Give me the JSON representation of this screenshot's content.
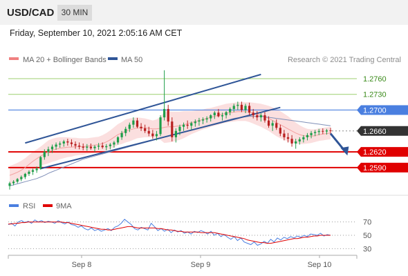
{
  "header": {
    "symbol": "USD/CAD",
    "timeframe": "30 MIN"
  },
  "timestamp": "Friday, September 10, 2021 2:05:16 AM CET",
  "legend": {
    "ma20": "MA 20 + Bollinger Bands",
    "ma50": "MA 50",
    "ma20_color": "#f08080",
    "ma50_color": "#2f5597"
  },
  "copyright": "Research © 2021 Trading Central",
  "chart_data": [
    {
      "type": "line",
      "panel": "price",
      "ylim": [
        1.2545,
        1.2785
      ],
      "x_ticks": [
        "Sep 8",
        "Sep 9",
        "Sep 10"
      ],
      "candles_ohlc": [
        [
          1.2555,
          1.2563,
          1.2548,
          1.256
        ],
        [
          1.256,
          1.2566,
          1.2556,
          1.2563
        ],
        [
          1.2563,
          1.257,
          1.256,
          1.2568
        ],
        [
          1.2568,
          1.2575,
          1.2564,
          1.2572
        ],
        [
          1.2572,
          1.258,
          1.2568,
          1.2578
        ],
        [
          1.2578,
          1.2585,
          1.2574,
          1.2582
        ],
        [
          1.2582,
          1.2588,
          1.2576,
          1.2585
        ],
        [
          1.2585,
          1.2592,
          1.258,
          1.2588
        ],
        [
          1.2588,
          1.2612,
          1.2586,
          1.261
        ],
        [
          1.261,
          1.2625,
          1.2605,
          1.262
        ],
        [
          1.262,
          1.263,
          1.2612,
          1.2625
        ],
        [
          1.2625,
          1.2634,
          1.2618,
          1.263
        ],
        [
          1.263,
          1.2638,
          1.2624,
          1.2634
        ],
        [
          1.2634,
          1.264,
          1.2628,
          1.2636
        ],
        [
          1.2636,
          1.2643,
          1.263,
          1.264
        ],
        [
          1.264,
          1.2645,
          1.2632,
          1.2638
        ],
        [
          1.2638,
          1.2644,
          1.263,
          1.2635
        ],
        [
          1.2635,
          1.264,
          1.2626,
          1.2632
        ],
        [
          1.2632,
          1.2638,
          1.2625,
          1.263
        ],
        [
          1.263,
          1.2636,
          1.2623,
          1.2628
        ],
        [
          1.2628,
          1.2635,
          1.2622,
          1.263
        ],
        [
          1.263,
          1.2636,
          1.2624,
          1.2627
        ],
        [
          1.2627,
          1.2633,
          1.262,
          1.263
        ],
        [
          1.263,
          1.2637,
          1.2624,
          1.2632
        ],
        [
          1.2632,
          1.2638,
          1.2626,
          1.2629
        ],
        [
          1.2629,
          1.2635,
          1.2623,
          1.2631
        ],
        [
          1.2631,
          1.2637,
          1.2625,
          1.2634
        ],
        [
          1.2634,
          1.2641,
          1.2628,
          1.2638
        ],
        [
          1.2638,
          1.265,
          1.2634,
          1.2648
        ],
        [
          1.2648,
          1.266,
          1.2643,
          1.2656
        ],
        [
          1.2656,
          1.2668,
          1.265,
          1.2664
        ],
        [
          1.2664,
          1.2676,
          1.2658,
          1.2672
        ],
        [
          1.2672,
          1.2686,
          1.2666,
          1.268
        ],
        [
          1.268,
          1.2685,
          1.2665,
          1.2668
        ],
        [
          1.2668,
          1.2675,
          1.266,
          1.2665
        ],
        [
          1.2665,
          1.2672,
          1.2656,
          1.266
        ],
        [
          1.266,
          1.2668,
          1.265,
          1.2655
        ],
        [
          1.2655,
          1.2662,
          1.2645,
          1.265
        ],
        [
          1.265,
          1.266,
          1.2642,
          1.2654
        ],
        [
          1.2654,
          1.269,
          1.265,
          1.2686
        ],
        [
          1.2686,
          1.2776,
          1.268,
          1.2702
        ],
        [
          1.2702,
          1.271,
          1.267,
          1.2678
        ],
        [
          1.2678,
          1.2686,
          1.264,
          1.2648
        ],
        [
          1.2648,
          1.2665,
          1.2638,
          1.266
        ],
        [
          1.266,
          1.2672,
          1.2652,
          1.2668
        ],
        [
          1.2668,
          1.2676,
          1.266,
          1.2672
        ],
        [
          1.2672,
          1.268,
          1.2664,
          1.267
        ],
        [
          1.267,
          1.2678,
          1.2662,
          1.2675
        ],
        [
          1.2675,
          1.2682,
          1.2668,
          1.2678
        ],
        [
          1.2678,
          1.2685,
          1.267,
          1.268
        ],
        [
          1.268,
          1.2686,
          1.2673,
          1.2682
        ],
        [
          1.2682,
          1.2688,
          1.2676,
          1.2684
        ],
        [
          1.2684,
          1.2692,
          1.2678,
          1.269
        ],
        [
          1.269,
          1.2698,
          1.2683,
          1.2695
        ],
        [
          1.2695,
          1.2702,
          1.2686,
          1.2688
        ],
        [
          1.2688,
          1.2695,
          1.268,
          1.269
        ],
        [
          1.269,
          1.2698,
          1.2684,
          1.2696
        ],
        [
          1.2696,
          1.2705,
          1.269,
          1.2702
        ],
        [
          1.2702,
          1.2712,
          1.2696,
          1.2708
        ],
        [
          1.2708,
          1.2716,
          1.27,
          1.271
        ],
        [
          1.271,
          1.2716,
          1.2696,
          1.27
        ],
        [
          1.27,
          1.2712,
          1.2694,
          1.2708
        ],
        [
          1.2708,
          1.2714,
          1.269,
          1.2695
        ],
        [
          1.2695,
          1.2702,
          1.2684,
          1.269
        ],
        [
          1.269,
          1.2698,
          1.268,
          1.2686
        ],
        [
          1.2686,
          1.2694,
          1.2678,
          1.269
        ],
        [
          1.269,
          1.2696,
          1.2676,
          1.268
        ],
        [
          1.268,
          1.2688,
          1.2666,
          1.267
        ],
        [
          1.267,
          1.268,
          1.266,
          1.2675
        ],
        [
          1.2675,
          1.2682,
          1.2662,
          1.2666
        ],
        [
          1.2666,
          1.2672,
          1.265,
          1.2655
        ],
        [
          1.2655,
          1.2662,
          1.2642,
          1.2648
        ],
        [
          1.2648,
          1.2656,
          1.2638,
          1.2645
        ],
        [
          1.2645,
          1.2652,
          1.263,
          1.2636
        ],
        [
          1.2636,
          1.2645,
          1.2626,
          1.264
        ],
        [
          1.264,
          1.2648,
          1.2634,
          1.2644
        ],
        [
          1.2644,
          1.2652,
          1.2638,
          1.2648
        ],
        [
          1.2648,
          1.2656,
          1.2642,
          1.2652
        ],
        [
          1.2652,
          1.266,
          1.2646,
          1.2656
        ],
        [
          1.2656,
          1.2662,
          1.265,
          1.2658
        ],
        [
          1.2658,
          1.2664,
          1.2652,
          1.266
        ],
        [
          1.266,
          1.2665,
          1.2654,
          1.2659
        ],
        [
          1.2659,
          1.2664,
          1.2653,
          1.2661
        ],
        [
          1.2661,
          1.2666,
          1.2655,
          1.266
        ]
      ],
      "ma20": [
        1.2575,
        1.2578,
        1.2581,
        1.2585,
        1.259,
        1.2596,
        1.2602,
        1.2607,
        1.2612,
        1.2616,
        1.262,
        1.2623,
        1.2625,
        1.2627,
        1.2628,
        1.2629,
        1.2629,
        1.263,
        1.263,
        1.263,
        1.2631,
        1.2632,
        1.2633,
        1.2634,
        1.2636,
        1.2639,
        1.2643,
        1.2648,
        1.2653,
        1.2656,
        1.266,
        1.2662,
        1.2664,
        1.2666,
        1.2666,
        1.2666,
        1.2665,
        1.2664,
        1.2664,
        1.2665,
        1.2667,
        1.2668,
        1.2668,
        1.2669,
        1.267,
        1.2672,
        1.2674,
        1.2676,
        1.2678,
        1.268,
        1.2682,
        1.2684,
        1.2686,
        1.2688,
        1.269,
        1.2692,
        1.2694,
        1.2695,
        1.2696,
        1.2697,
        1.2697,
        1.2697,
        1.2696,
        1.2694,
        1.2692,
        1.269,
        1.2687,
        1.2684,
        1.268,
        1.2676,
        1.2672,
        1.2668,
        1.2664,
        1.266,
        1.2656,
        1.2653,
        1.2651,
        1.265,
        1.265,
        1.2651,
        1.2653,
        1.2654,
        1.2655,
        1.2656
      ],
      "ma50": [
        1.2555,
        1.2557,
        1.2559,
        1.2561,
        1.2563,
        1.2565,
        1.2567,
        1.2569,
        1.2572,
        1.2575,
        1.2579,
        1.2582,
        1.2585,
        1.2588,
        1.2591,
        1.2594,
        1.2597,
        1.26,
        1.2603,
        1.2606,
        1.2608,
        1.261,
        1.2612,
        1.2614,
        1.2616,
        1.2618,
        1.262,
        1.2622,
        1.2624,
        1.2626,
        1.2628,
        1.263,
        1.2632,
        1.2634,
        1.2636,
        1.2638,
        1.264,
        1.2642,
        1.2644,
        1.2646,
        1.2648,
        1.265,
        1.2652,
        1.2654,
        1.2656,
        1.2658,
        1.266,
        1.2662,
        1.2664,
        1.2666,
        1.2668,
        1.267,
        1.2672,
        1.2674,
        1.2676,
        1.2678,
        1.268,
        1.2682,
        1.2684,
        1.2685,
        1.2686,
        1.2687,
        1.2688,
        1.2688,
        1.2688,
        1.2688,
        1.2687,
        1.2686,
        1.2685,
        1.2684,
        1.2683,
        1.2682,
        1.2681,
        1.268,
        1.2679,
        1.2678,
        1.2677,
        1.2676,
        1.2675,
        1.2674,
        1.2673,
        1.2672,
        1.2671,
        1.267
      ],
      "bollinger_width": [
        0.0018,
        0.0018,
        0.0018,
        0.0018,
        0.0018,
        0.0018,
        0.0018,
        0.0018,
        0.0018,
        0.002,
        0.0022,
        0.0022,
        0.0022,
        0.0021,
        0.002,
        0.0019,
        0.0018,
        0.0017,
        0.0016,
        0.0016,
        0.0015,
        0.0015,
        0.0015,
        0.0015,
        0.0016,
        0.0017,
        0.0018,
        0.0019,
        0.002,
        0.0021,
        0.0022,
        0.0022,
        0.0021,
        0.002,
        0.0019,
        0.0018,
        0.0017,
        0.0016,
        0.0018,
        0.0022,
        0.003,
        0.003,
        0.0029,
        0.0028,
        0.0027,
        0.0026,
        0.0024,
        0.0022,
        0.0021,
        0.002,
        0.0019,
        0.0019,
        0.0018,
        0.0018,
        0.0018,
        0.0018,
        0.0018,
        0.0018,
        0.0018,
        0.0018,
        0.0018,
        0.0018,
        0.0019,
        0.002,
        0.0021,
        0.0022,
        0.0023,
        0.0024,
        0.0025,
        0.0026,
        0.0026,
        0.0025,
        0.0024,
        0.0022,
        0.002,
        0.0018,
        0.0016,
        0.0014,
        0.0013,
        0.0012,
        0.0012,
        0.0012,
        0.0012,
        0.0012
      ],
      "horizontal_levels": [
        {
          "value": 1.276,
          "label": "1.2760",
          "style": "resistance-green"
        },
        {
          "value": 1.273,
          "label": "1.2730",
          "style": "resistance-green"
        },
        {
          "value": 1.27,
          "label": "1.2700",
          "style": "pivot-blue"
        },
        {
          "value": 1.266,
          "label": "1.2660",
          "style": "last-price"
        },
        {
          "value": 1.262,
          "label": "1.2620",
          "style": "support-red"
        },
        {
          "value": 1.259,
          "label": "1.2590",
          "style": "support-red"
        }
      ],
      "trendlines": [
        {
          "from": [
            4,
            1.2637
          ],
          "to": [
            65,
            1.2768
          ]
        },
        {
          "from": [
            8,
            1.2588
          ],
          "to": [
            70,
            1.2705
          ]
        }
      ],
      "forecast_arrow": {
        "from": [
          83,
          1.2655
        ],
        "to": [
          87,
          1.2617
        ]
      },
      "colors": {
        "bull": "#1e9e4a",
        "bear": "#b81f1f",
        "band_fill": "#fbdcdc",
        "blue": "#4a7fe0",
        "red": "#e00000",
        "green": "#9ccf6f",
        "last": "#333333"
      }
    },
    {
      "type": "line",
      "panel": "rsi",
      "legend": [
        "RSI",
        "9MA"
      ],
      "ylim": [
        20,
        80
      ],
      "y_ticks": [
        70,
        50,
        30
      ],
      "series": [
        {
          "name": "RSI",
          "color": "#4a7fe0",
          "values": [
            66,
            68,
            64,
            70,
            72,
            69,
            71,
            68,
            73,
            70,
            72,
            69,
            71,
            70,
            68,
            72,
            69,
            67,
            70,
            66,
            65,
            62,
            64,
            60,
            58,
            61,
            57,
            59,
            56,
            58,
            60,
            57,
            62,
            64,
            68,
            74,
            70,
            66,
            60,
            58,
            62,
            60,
            58,
            68,
            63,
            57,
            60,
            56,
            59,
            54,
            58,
            55,
            57,
            53,
            55,
            52,
            56,
            54,
            57,
            55,
            52,
            56,
            50,
            53,
            48,
            51,
            47,
            44,
            48,
            42,
            46,
            40,
            38,
            36,
            40,
            35,
            37,
            41,
            38,
            44,
            40,
            46,
            43,
            47,
            45,
            48,
            46,
            49,
            47,
            50,
            48,
            52,
            51,
            50,
            53,
            49,
            51,
            50
          ]
        },
        {
          "name": "9MA",
          "color": "#e00000",
          "values": [
            67,
            67,
            68,
            68,
            69,
            69,
            70,
            70,
            70,
            70,
            70,
            70,
            70,
            70,
            70,
            70,
            70,
            69,
            69,
            68,
            67,
            66,
            65,
            64,
            63,
            62,
            61,
            60,
            59,
            59,
            58,
            58,
            59,
            60,
            61,
            62,
            63,
            63,
            62,
            61,
            61,
            61,
            61,
            61,
            61,
            60,
            60,
            59,
            58,
            58,
            57,
            56,
            56,
            55,
            55,
            55,
            55,
            55,
            54,
            54,
            54,
            54,
            54,
            53,
            52,
            51,
            50,
            49,
            48,
            47,
            46,
            45,
            43,
            42,
            41,
            40,
            39,
            39,
            38,
            38,
            39,
            40,
            41,
            42,
            43,
            44,
            45,
            45,
            46,
            47,
            47,
            48,
            49,
            49,
            50,
            50,
            50,
            50
          ]
        }
      ],
      "guide_color": "#999999"
    }
  ]
}
